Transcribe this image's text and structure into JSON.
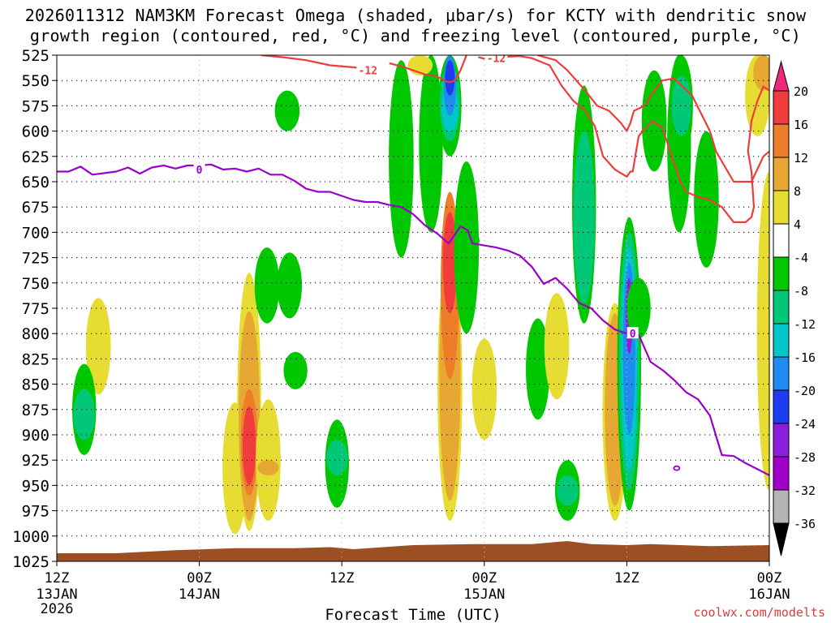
{
  "header": {
    "title_line1": "2026011312 NAM3KM Forecast Omega (shaded, μbar/s) for KCTY with dendritic snow",
    "title_line2": "growth region (contoured, red, °C) and freezing level (contoured, purple, °C)"
  },
  "footer": {
    "credit": "coolwx.com/modelts"
  },
  "chart_data": {
    "type": "heatmap",
    "title": "2026011312 NAM3KM Forecast Omega (shaded, μbar/s) for KCTY with dendritic snow growth region (contoured, red, °C) and freezing level (contoured, purple, °C)",
    "station": "KCTY",
    "model": "NAM3KM",
    "init": "2026011312",
    "xlabel": "Forecast Time (UTC)",
    "ylabel": "",
    "xlim": [
      0,
      60
    ],
    "ylim": [
      525,
      1025
    ],
    "y_axis_inverted": true,
    "grid": true,
    "x_ticks": [
      {
        "hour": 0,
        "label": "12Z",
        "sub": "13JAN",
        "sub2": "2026"
      },
      {
        "hour": 12,
        "label": "00Z",
        "sub": "14JAN",
        "sub2": ""
      },
      {
        "hour": 24,
        "label": "12Z",
        "sub": "",
        "sub2": ""
      },
      {
        "hour": 36,
        "label": "00Z",
        "sub": "15JAN",
        "sub2": ""
      },
      {
        "hour": 48,
        "label": "12Z",
        "sub": "",
        "sub2": ""
      },
      {
        "hour": 60,
        "label": "00Z",
        "sub": "16JAN",
        "sub2": ""
      }
    ],
    "y_ticks": [
      525,
      550,
      575,
      600,
      625,
      650,
      675,
      700,
      725,
      750,
      775,
      800,
      825,
      850,
      875,
      900,
      925,
      950,
      975,
      1000,
      1025
    ],
    "colorbar": {
      "labels": [
        "20",
        "16",
        "12",
        "8",
        "4",
        "-4",
        "-8",
        "-12",
        "-16",
        "-20",
        "-24",
        "-28",
        "-32",
        "-36"
      ],
      "bins": [
        {
          "min": 20,
          "max": 24,
          "color": "#f0287c"
        },
        {
          "min": 16,
          "max": 20,
          "color": "#f03c3c"
        },
        {
          "min": 12,
          "max": 16,
          "color": "#ee7d2a"
        },
        {
          "min": 8,
          "max": 12,
          "color": "#e6a832"
        },
        {
          "min": 4,
          "max": 8,
          "color": "#e6dc32"
        },
        {
          "min": -4,
          "max": 4,
          "color": "#ffffff"
        },
        {
          "min": -8,
          "max": -4,
          "color": "#00c800"
        },
        {
          "min": -12,
          "max": -8,
          "color": "#00c878"
        },
        {
          "min": -16,
          "max": -12,
          "color": "#00c8c8"
        },
        {
          "min": -20,
          "max": -16,
          "color": "#1e8cf0"
        },
        {
          "min": -24,
          "max": -20,
          "color": "#1e3cf0"
        },
        {
          "min": -28,
          "max": -24,
          "color": "#8c1edc"
        },
        {
          "min": -32,
          "max": -28,
          "color": "#a000c8"
        },
        {
          "min": -36,
          "max": -32,
          "color": "#b4b4b4"
        },
        {
          "min": -40,
          "max": -36,
          "color": "#000000"
        }
      ]
    },
    "omega_areas": [
      {
        "hour": 3.5,
        "p_top": 765,
        "p_bot": 860,
        "value": 5
      },
      {
        "hour": 2.3,
        "p_top": 830,
        "p_bot": 920,
        "value": -6
      },
      {
        "hour": 2.3,
        "p_top": 855,
        "p_bot": 905,
        "value": -9
      },
      {
        "hour": 15.0,
        "p_top": 868,
        "p_bot": 998,
        "value": 5
      },
      {
        "hour": 16.2,
        "p_top": 740,
        "p_bot": 995,
        "value": 6
      },
      {
        "hour": 16.2,
        "p_top": 778,
        "p_bot": 985,
        "value": 9
      },
      {
        "hour": 16.2,
        "p_top": 855,
        "p_bot": 960,
        "value": 14
      },
      {
        "hour": 16.2,
        "p_top": 872,
        "p_bot": 950,
        "value": 18
      },
      {
        "hour": 17.8,
        "p_top": 865,
        "p_bot": 985,
        "value": 5
      },
      {
        "hour": 17.8,
        "p_top": 925,
        "p_bot": 940,
        "value": 9
      },
      {
        "hour": 19.4,
        "p_top": 560,
        "p_bot": 600,
        "value": -5
      },
      {
        "hour": 17.7,
        "p_top": 715,
        "p_bot": 790,
        "value": -5
      },
      {
        "hour": 19.6,
        "p_top": 720,
        "p_bot": 785,
        "value": -5
      },
      {
        "hour": 20.1,
        "p_top": 818,
        "p_bot": 855,
        "value": -6
      },
      {
        "hour": 23.6,
        "p_top": 885,
        "p_bot": 972,
        "value": -6
      },
      {
        "hour": 23.6,
        "p_top": 905,
        "p_bot": 940,
        "value": -9
      },
      {
        "hour": 29.0,
        "p_top": 530,
        "p_bot": 725,
        "value": -5
      },
      {
        "hour": 31.5,
        "p_top": 525,
        "p_bot": 700,
        "value": -6
      },
      {
        "hour": 33.1,
        "p_top": 525,
        "p_bot": 625,
        "value": -7
      },
      {
        "hour": 33.1,
        "p_top": 535,
        "p_bot": 610,
        "value": -10
      },
      {
        "hour": 33.1,
        "p_top": 555,
        "p_bot": 600,
        "value": -14
      },
      {
        "hour": 33.1,
        "p_top": 525,
        "p_bot": 585,
        "value": -19
      },
      {
        "hour": 33.1,
        "p_top": 530,
        "p_bot": 565,
        "value": -22
      },
      {
        "hour": 30.6,
        "p_top": 525,
        "p_bot": 545,
        "value": 5
      },
      {
        "hour": 33.1,
        "p_top": 720,
        "p_bot": 985,
        "value": 5
      },
      {
        "hour": 33.1,
        "p_top": 710,
        "p_bot": 965,
        "value": 9
      },
      {
        "hour": 33.1,
        "p_top": 660,
        "p_bot": 845,
        "value": 12
      },
      {
        "hour": 33.1,
        "p_top": 680,
        "p_bot": 780,
        "value": 17
      },
      {
        "hour": 34.5,
        "p_top": 630,
        "p_bot": 800,
        "value": -5
      },
      {
        "hour": 34.6,
        "p_top": 700,
        "p_bot": 716,
        "value": -6
      },
      {
        "hour": 36.0,
        "p_top": 805,
        "p_bot": 905,
        "value": 5
      },
      {
        "hour": 40.5,
        "p_top": 785,
        "p_bot": 885,
        "value": -6
      },
      {
        "hour": 42.1,
        "p_top": 760,
        "p_bot": 865,
        "value": 5
      },
      {
        "hour": 43.0,
        "p_top": 925,
        "p_bot": 985,
        "value": -5
      },
      {
        "hour": 43.0,
        "p_top": 940,
        "p_bot": 970,
        "value": -9
      },
      {
        "hour": 43.0,
        "p_top": 945,
        "p_bot": 965,
        "value": -12
      },
      {
        "hour": 44.4,
        "p_top": 555,
        "p_bot": 790,
        "value": -6
      },
      {
        "hour": 44.4,
        "p_top": 600,
        "p_bot": 770,
        "value": -9
      },
      {
        "hour": 44.4,
        "p_top": 660,
        "p_bot": 760,
        "value": -11
      },
      {
        "hour": 47.0,
        "p_top": 770,
        "p_bot": 985,
        "value": 5
      },
      {
        "hour": 47.0,
        "p_top": 780,
        "p_bot": 970,
        "value": 10
      },
      {
        "hour": 48.2,
        "p_top": 685,
        "p_bot": 975,
        "value": -6
      },
      {
        "hour": 48.2,
        "p_top": 700,
        "p_bot": 955,
        "value": -10
      },
      {
        "hour": 48.2,
        "p_top": 715,
        "p_bot": 935,
        "value": -15
      },
      {
        "hour": 48.2,
        "p_top": 730,
        "p_bot": 900,
        "value": -19
      },
      {
        "hour": 48.2,
        "p_top": 745,
        "p_bot": 820,
        "value": -25
      },
      {
        "hour": 49.0,
        "p_top": 745,
        "p_bot": 805,
        "value": -6
      },
      {
        "hour": 50.3,
        "p_top": 540,
        "p_bot": 640,
        "value": -5
      },
      {
        "hour": 52.4,
        "p_top": 525,
        "p_bot": 700,
        "value": -6
      },
      {
        "hour": 52.6,
        "p_top": 525,
        "p_bot": 625,
        "value": -7
      },
      {
        "hour": 52.6,
        "p_top": 545,
        "p_bot": 605,
        "value": -11
      },
      {
        "hour": 54.7,
        "p_top": 600,
        "p_bot": 735,
        "value": -5
      },
      {
        "hour": 59.0,
        "p_top": 525,
        "p_bot": 605,
        "value": 5
      },
      {
        "hour": 59.5,
        "p_top": 525,
        "p_bot": 560,
        "value": 10
      },
      {
        "hour": 60.0,
        "p_top": 640,
        "p_bot": 955,
        "value": 5
      }
    ],
    "freezing_level": {
      "name": "freezing level",
      "contour_label": "0",
      "color": "#9b00c8",
      "points": [
        [
          0,
          640
        ],
        [
          1,
          640
        ],
        [
          2,
          635
        ],
        [
          3,
          643
        ],
        [
          5,
          640
        ],
        [
          6,
          636
        ],
        [
          7,
          642
        ],
        [
          8,
          636
        ],
        [
          9,
          634
        ],
        [
          10,
          637
        ],
        [
          11,
          634
        ],
        [
          12,
          634
        ],
        [
          13,
          633
        ],
        [
          14,
          638
        ],
        [
          15,
          637
        ],
        [
          16,
          640
        ],
        [
          17,
          637
        ],
        [
          18,
          643
        ],
        [
          19,
          643
        ],
        [
          20,
          649
        ],
        [
          21,
          657
        ],
        [
          22,
          660
        ],
        [
          23,
          660
        ],
        [
          24,
          664
        ],
        [
          25,
          668
        ],
        [
          26,
          670
        ],
        [
          27,
          670
        ],
        [
          28,
          673
        ],
        [
          29,
          675
        ],
        [
          30,
          682
        ],
        [
          31,
          693
        ],
        [
          32,
          701
        ],
        [
          33,
          711
        ],
        [
          34,
          694
        ],
        [
          34.6,
          698
        ],
        [
          35,
          711
        ],
        [
          37,
          715
        ],
        [
          38,
          718
        ],
        [
          39,
          723
        ],
        [
          40,
          734
        ],
        [
          41,
          751
        ],
        [
          42,
          745
        ],
        [
          43,
          756
        ],
        [
          44,
          770
        ],
        [
          45,
          775
        ],
        [
          46,
          787
        ],
        [
          47,
          796
        ],
        [
          48,
          800
        ],
        [
          49,
          801
        ],
        [
          50,
          828
        ],
        [
          51,
          836
        ],
        [
          52,
          846
        ],
        [
          53,
          858
        ],
        [
          54,
          865
        ],
        [
          55,
          881
        ],
        [
          56,
          920
        ],
        [
          57,
          921
        ],
        [
          58,
          928
        ],
        [
          59,
          934
        ],
        [
          60,
          940
        ]
      ]
    },
    "freezing_level_closed": {
      "hour": 52.2,
      "p": 933,
      "contour_label": "0"
    },
    "dgz_minus12": {
      "name": "dendritic snow growth region",
      "contour_label": "-12",
      "color": "#ee3c3c",
      "segments": [
        [
          [
            17.2,
            525
          ],
          [
            19,
            527
          ],
          [
            21,
            530
          ],
          [
            23,
            535
          ],
          [
            25,
            537
          ],
          [
            26.5,
            539
          ]
        ],
        [
          [
            28,
            533
          ],
          [
            29,
            536
          ],
          [
            30,
            540
          ],
          [
            31,
            544
          ],
          [
            32,
            546
          ],
          [
            33,
            552
          ],
          [
            33.5,
            550
          ],
          [
            34,
            540
          ],
          [
            34.5,
            525
          ]
        ],
        [
          [
            35.5,
            527
          ],
          [
            36.5,
            530
          ],
          [
            37,
            527
          ],
          [
            39,
            526
          ],
          [
            40,
            528
          ],
          [
            41.5,
            535
          ],
          [
            42.5,
            555
          ],
          [
            43.5,
            570
          ],
          [
            44.5,
            580
          ],
          [
            45.3,
            595
          ],
          [
            46,
            625
          ],
          [
            47,
            638
          ],
          [
            48,
            645
          ],
          [
            48.3,
            640
          ],
          [
            48.5,
            640
          ],
          [
            49,
            605
          ],
          [
            49.5,
            598
          ],
          [
            50.2,
            590
          ],
          [
            51,
            597
          ],
          [
            51.8,
            625
          ],
          [
            52.5,
            650
          ],
          [
            53,
            660
          ],
          [
            54,
            665
          ],
          [
            55,
            668
          ],
          [
            56,
            675
          ],
          [
            57,
            690
          ],
          [
            58,
            690
          ],
          [
            58.5,
            685
          ],
          [
            58.7,
            675
          ],
          [
            58.5,
            640
          ],
          [
            58.2,
            620
          ],
          [
            58.5,
            590
          ],
          [
            59,
            570
          ],
          [
            59.5,
            556
          ],
          [
            60,
            560
          ]
        ],
        [
          [
            40.5,
            525
          ],
          [
            42,
            530
          ],
          [
            43,
            540
          ],
          [
            44.5,
            560
          ],
          [
            45.5,
            575
          ],
          [
            46.5,
            580
          ],
          [
            47.5,
            592
          ],
          [
            48,
            600
          ],
          [
            48.3,
            592
          ],
          [
            48.6,
            580
          ],
          [
            49.5,
            575
          ],
          [
            50.3,
            560
          ],
          [
            51,
            550
          ],
          [
            52,
            548
          ],
          [
            53.5,
            565
          ],
          [
            55,
            600
          ],
          [
            55.5,
            620
          ],
          [
            56,
            630
          ],
          [
            57,
            650
          ],
          [
            58.5,
            650
          ],
          [
            59.5,
            625
          ],
          [
            60,
            620
          ]
        ]
      ]
    },
    "terrain_surface": {
      "color": "#9c4f23",
      "points": [
        [
          0,
          1017
        ],
        [
          5,
          1017
        ],
        [
          10,
          1014
        ],
        [
          15,
          1012
        ],
        [
          20,
          1012
        ],
        [
          23,
          1011
        ],
        [
          25,
          1013
        ],
        [
          30,
          1009
        ],
        [
          35,
          1008
        ],
        [
          40,
          1008
        ],
        [
          42,
          1006
        ],
        [
          43,
          1005
        ],
        [
          45,
          1008
        ],
        [
          48,
          1009
        ],
        [
          50,
          1008
        ],
        [
          55,
          1010
        ],
        [
          60,
          1009
        ]
      ]
    }
  }
}
